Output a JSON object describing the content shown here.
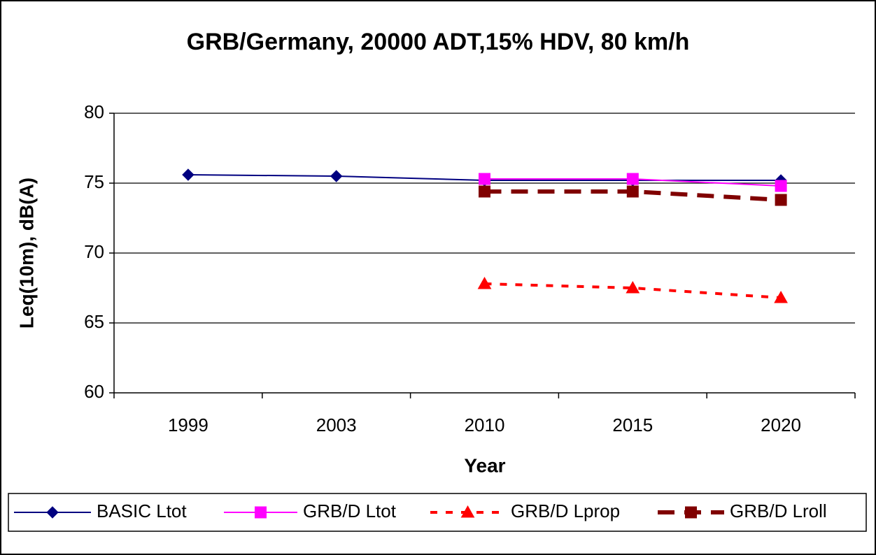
{
  "chart_data": {
    "type": "line",
    "title": "GRB/Germany, 20000 ADT,15% HDV, 80 km/h",
    "x_label": "Year",
    "y_label": "Leq(10m), dB(A)",
    "categories": [
      "1999",
      "2003",
      "2010",
      "2015",
      "2020"
    ],
    "series": [
      {
        "name": "BASIC Ltot",
        "color": "#000080",
        "marker": "diamond",
        "line_style": "solid",
        "values": [
          75.6,
          75.5,
          75.2,
          75.2,
          75.2
        ]
      },
      {
        "name": "GRB/D Ltot",
        "color": "#ff00ff",
        "marker": "square",
        "line_style": "solid",
        "values": [
          null,
          null,
          75.3,
          75.3,
          74.8
        ]
      },
      {
        "name": "GRB/D Lprop",
        "color": "#ff0000",
        "marker": "triangle",
        "line_style": "short-dash",
        "values": [
          null,
          null,
          67.8,
          67.5,
          66.8
        ]
      },
      {
        "name": "GRB/D Lroll",
        "color": "#800000",
        "marker": "square",
        "line_style": "long-dash",
        "values": [
          null,
          null,
          74.4,
          74.4,
          73.8
        ]
      }
    ],
    "ylim": [
      60,
      80
    ],
    "yticks": [
      60,
      65,
      70,
      75,
      80
    ],
    "grid": true,
    "legend": "bottom"
  }
}
